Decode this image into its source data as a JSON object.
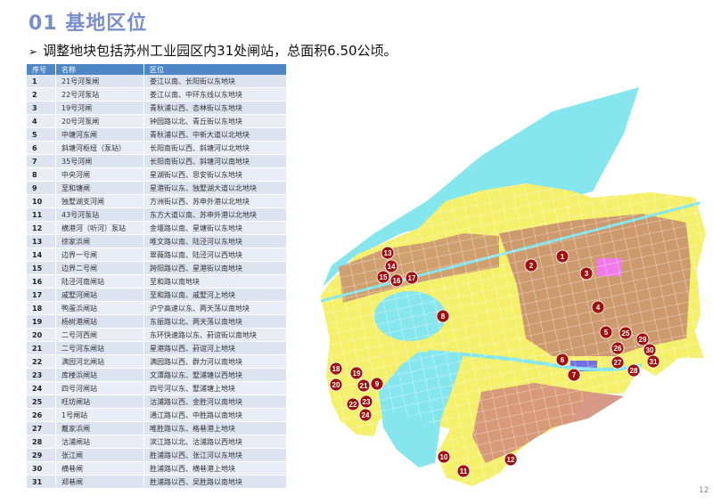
{
  "header": {
    "title": "01 基地区位",
    "subtitle": "调整地块包括苏州工业园区内31处闸站，总面积6.50公顷。"
  },
  "table": {
    "columns": [
      "序号",
      "名称",
      "区位"
    ],
    "rows": [
      [
        "1",
        "21号河泵闸",
        "娄江以南、长阳街以东地块"
      ],
      [
        "2",
        "22号河泵站",
        "娄江以南、中环东线以东地块"
      ],
      [
        "3",
        "19号河闸",
        "青秋浦以西、杏林街以东地块"
      ],
      [
        "4",
        "20号河泵闸",
        "钟园路以北、青丘街以东地块"
      ],
      [
        "5",
        "中塘河东闸",
        "青秋浦以西、中新大道以北地块"
      ],
      [
        "6",
        "斜塘河枢纽（泵站）",
        "长阳南街以西、斜塘河以北地块"
      ],
      [
        "7",
        "35号河闸",
        "长阳南街以西、斜塘河以南地块"
      ],
      [
        "8",
        "中央河闸",
        "星湖街以西、思安街以东地块"
      ],
      [
        "9",
        "至和塘闸",
        "星港街以东、独墅湖大道以北地块"
      ],
      [
        "10",
        "独墅湖支河闸",
        "方洲街以西、苏申外港以北地块"
      ],
      [
        "11",
        "43号河泵站",
        "东方大道以南、苏申外港以北地块"
      ],
      [
        "12",
        "横港河（听河）泵站",
        "金堰路以南、星塘街以东地块"
      ],
      [
        "13",
        "徐家浜闸",
        "唯文路以南、陆泾河以东地块"
      ],
      [
        "14",
        "边界一号闸",
        "翠薇路以南、陆泾河以西地块"
      ],
      [
        "15",
        "边界二号闸",
        "跨阳路以西、星港街以南地块"
      ],
      [
        "16",
        "陆泾河南闸站",
        "至和路以南地块"
      ],
      [
        "17",
        "戚墅河闸站",
        "至和路以南、戚墅河上地块"
      ],
      [
        "18",
        "鸭蛋浜闸站",
        "沪宁高速以东、两天荡以南地块"
      ],
      [
        "19",
        "杨树港闸站",
        "东振路以北、两天荡以南地块"
      ],
      [
        "20",
        "二号河西闸",
        "东环快速路以东、葑谊街以南地块"
      ],
      [
        "21",
        "二号河东闸站",
        "星港路以西、葑谊河上地块"
      ],
      [
        "22",
        "满园河北闸站",
        "满园路以西、群力河以南地块"
      ],
      [
        "23",
        "库楼浜闸站",
        "文潭路以东、墅浦塘以西地块"
      ],
      [
        "24",
        "四号河闸站",
        "四号河以东、墅浦塘上地块"
      ],
      [
        "25",
        "旺坊闸站",
        "沽浦路以西、金胜河以南地块"
      ],
      [
        "26",
        "1号闸站",
        "通江路以西、中胜路以南地块"
      ],
      [
        "27",
        "戴家浜闸",
        "唯胜路以东、格巷港上地块"
      ],
      [
        "28",
        "沽浦闸站",
        "滨江路以北、沽浦路以西地块"
      ],
      [
        "29",
        "张江闸",
        "胜浦路以西、张江河以东地块"
      ],
      [
        "30",
        "横巷闸",
        "胜浦路以西、横巷港上地块"
      ],
      [
        "31",
        "郑巷闸",
        "胜浦路以西、吴胜路以南地块"
      ]
    ]
  },
  "map": {
    "markers": [
      "1",
      "2",
      "3",
      "4",
      "5",
      "6",
      "7",
      "8",
      "9",
      "10",
      "11",
      "12",
      "13",
      "14",
      "15",
      "16",
      "17",
      "18",
      "19",
      "20",
      "21",
      "22",
      "23",
      "24",
      "25",
      "26",
      "27",
      "28",
      "29",
      "30",
      "31"
    ],
    "colors": {
      "water": "#86e6ee",
      "residential": "#f5f06a",
      "industrial": "#c9906e",
      "commercial": "#e86a6a",
      "marker": "#a01010"
    }
  },
  "footer": {
    "page": "12"
  }
}
